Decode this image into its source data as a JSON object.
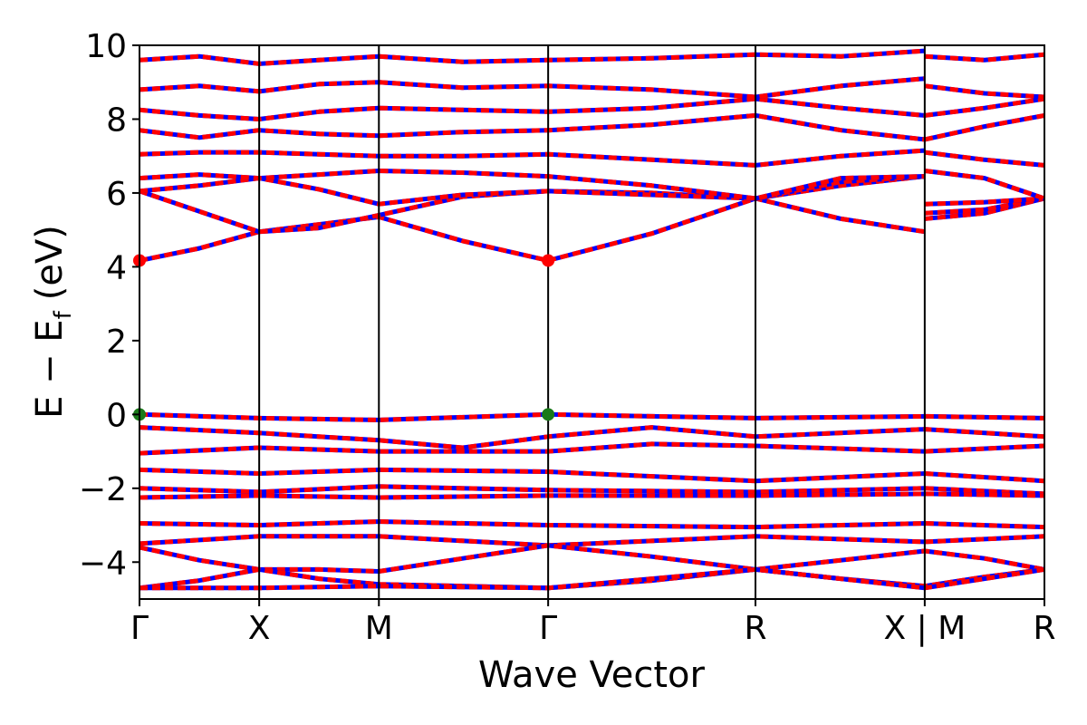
{
  "chart_data": {
    "type": "line",
    "title": "",
    "xlabel": "Wave Vector",
    "ylabel": {
      "main": "E − E",
      "subscript": "f",
      "unit": "(eV)"
    },
    "ylim": [
      -5,
      10
    ],
    "yticks": [
      -4,
      -2,
      0,
      2,
      4,
      6,
      8,
      10
    ],
    "ytick_labels": [
      "−4",
      "−2",
      "0",
      "2",
      "4",
      "6",
      "8",
      "10"
    ],
    "kpath_labels": [
      "Γ",
      "X",
      "M",
      "Γ",
      "R",
      "X | M",
      "R"
    ],
    "kpath_positions": [
      0,
      0.5,
      1.0,
      1.707,
      2.573,
      3.28,
      3.78
    ],
    "xlim": [
      0,
      3.78
    ],
    "grid": false,
    "legend": "none",
    "colors": {
      "up": "#ff0000",
      "down": "#0000ff",
      "cbm": "#ff0000",
      "vbm": "#1a7a1a",
      "kline": "#000000"
    },
    "markers": {
      "cbm": [
        {
          "x": 0,
          "y": 4.17
        },
        {
          "x": 1.707,
          "y": 4.17
        }
      ],
      "vbm": [
        {
          "x": 0,
          "y": 0.0
        },
        {
          "x": 1.707,
          "y": 0.0
        }
      ]
    },
    "bands": [
      {
        "name": "conduction_lowest",
        "x": [
          0,
          0.25,
          0.5,
          0.75,
          1.0,
          1.35,
          1.707,
          2.14,
          2.573,
          2.93,
          3.28,
          3.28,
          3.53,
          3.78
        ],
        "y": [
          4.17,
          4.5,
          4.95,
          5.15,
          5.35,
          4.7,
          4.17,
          4.9,
          5.85,
          5.3,
          4.95,
          5.3,
          5.45,
          5.85
        ]
      },
      {
        "name": "conduction_2",
        "x": [
          0,
          0.25,
          0.5,
          0.75,
          1.0,
          1.35,
          1.707,
          2.14,
          2.573,
          2.93,
          3.28,
          3.28,
          3.53,
          3.78
        ],
        "y": [
          6.05,
          5.5,
          4.95,
          5.05,
          5.4,
          5.9,
          6.05,
          6.0,
          5.85,
          6.2,
          6.45,
          5.45,
          5.55,
          5.85
        ]
      },
      {
        "name": "conduction_3",
        "x": [
          0,
          0.25,
          0.5,
          0.75,
          1.0,
          1.35,
          1.707,
          2.14,
          2.573,
          2.93,
          3.28,
          3.28,
          3.53,
          3.78
        ],
        "y": [
          6.05,
          6.2,
          6.4,
          6.1,
          5.7,
          5.95,
          6.05,
          5.95,
          5.85,
          6.3,
          6.45,
          5.7,
          5.75,
          5.85
        ]
      },
      {
        "name": "conduction_4",
        "x": [
          0,
          0.25,
          0.5,
          0.75,
          1.0,
          1.35,
          1.707,
          2.14,
          2.573,
          2.93,
          3.28,
          3.28,
          3.53,
          3.78
        ],
        "y": [
          6.4,
          6.5,
          6.4,
          6.5,
          6.6,
          6.55,
          6.45,
          6.2,
          5.85,
          6.4,
          6.45,
          6.6,
          6.4,
          5.85
        ]
      },
      {
        "name": "conduction_5",
        "x": [
          0,
          0.25,
          0.5,
          0.75,
          1.0,
          1.35,
          1.707,
          2.14,
          2.573,
          2.93,
          3.28,
          3.28,
          3.53,
          3.78
        ],
        "y": [
          7.05,
          7.1,
          7.1,
          7.05,
          7.0,
          7.0,
          7.05,
          6.9,
          6.75,
          7.0,
          7.15,
          7.1,
          6.9,
          6.75
        ]
      },
      {
        "name": "conduction_6",
        "x": [
          0,
          0.25,
          0.5,
          0.75,
          1.0,
          1.35,
          1.707,
          2.14,
          2.573,
          2.93,
          3.28,
          3.28,
          3.53,
          3.78
        ],
        "y": [
          7.7,
          7.5,
          7.7,
          7.6,
          7.55,
          7.65,
          7.7,
          7.85,
          8.1,
          7.7,
          7.45,
          7.45,
          7.8,
          8.1
        ]
      },
      {
        "name": "conduction_7",
        "x": [
          0,
          0.25,
          0.5,
          0.75,
          1.0,
          1.35,
          1.707,
          2.14,
          2.573,
          2.93,
          3.28,
          3.28,
          3.53,
          3.78
        ],
        "y": [
          8.25,
          8.1,
          8.0,
          8.2,
          8.3,
          8.25,
          8.2,
          8.3,
          8.55,
          8.3,
          8.1,
          8.1,
          8.3,
          8.55
        ]
      },
      {
        "name": "conduction_8",
        "x": [
          0,
          0.25,
          0.5,
          0.75,
          1.0,
          1.35,
          1.707,
          2.14,
          2.573,
          2.93,
          3.28,
          3.28,
          3.53,
          3.78
        ],
        "y": [
          8.8,
          8.9,
          8.75,
          8.95,
          9.0,
          8.85,
          8.9,
          8.8,
          8.6,
          8.9,
          9.1,
          8.9,
          8.7,
          8.6
        ]
      },
      {
        "name": "conduction_9",
        "x": [
          0,
          0.25,
          0.5,
          0.75,
          1.0,
          1.35,
          1.707,
          2.14,
          2.573,
          2.93,
          3.28,
          3.28,
          3.53,
          3.78
        ],
        "y": [
          9.6,
          9.7,
          9.5,
          9.6,
          9.7,
          9.55,
          9.6,
          9.65,
          9.75,
          9.7,
          9.85,
          9.7,
          9.6,
          9.75
        ]
      },
      {
        "name": "valence_top",
        "x": [
          0,
          0.5,
          1.0,
          1.707,
          2.573,
          3.28,
          3.78
        ],
        "y": [
          0.0,
          -0.1,
          -0.15,
          0.0,
          -0.1,
          -0.05,
          -0.1
        ]
      },
      {
        "name": "valence_2",
        "x": [
          0,
          0.5,
          1.0,
          1.35,
          1.707,
          2.14,
          2.573,
          3.28,
          3.78
        ],
        "y": [
          -0.35,
          -0.5,
          -0.7,
          -0.9,
          -0.6,
          -0.35,
          -0.6,
          -0.4,
          -0.6
        ]
      },
      {
        "name": "valence_3",
        "x": [
          0,
          0.5,
          1.0,
          1.707,
          2.14,
          2.573,
          3.28,
          3.78
        ],
        "y": [
          -1.05,
          -0.9,
          -1.0,
          -1.0,
          -0.8,
          -0.85,
          -1.0,
          -0.85
        ]
      },
      {
        "name": "valence_4",
        "x": [
          0,
          0.5,
          1.0,
          1.707,
          2.573,
          3.28,
          3.78
        ],
        "y": [
          -1.5,
          -1.6,
          -1.5,
          -1.55,
          -1.8,
          -1.6,
          -1.8
        ]
      },
      {
        "name": "valence_5",
        "x": [
          0,
          0.5,
          1.0,
          1.707,
          2.573,
          3.28,
          3.78
        ],
        "y": [
          -2.0,
          -2.1,
          -1.95,
          -2.05,
          -2.1,
          -2.0,
          -2.15
        ]
      },
      {
        "name": "valence_6",
        "x": [
          0,
          0.5,
          1.0,
          1.707,
          2.573,
          3.28,
          3.78
        ],
        "y": [
          -2.25,
          -2.2,
          -2.25,
          -2.2,
          -2.2,
          -2.15,
          -2.2
        ]
      },
      {
        "name": "valence_7",
        "x": [
          0,
          0.5,
          1.0,
          1.707,
          2.573,
          3.28,
          3.78
        ],
        "y": [
          -2.95,
          -3.0,
          -2.9,
          -3.0,
          -3.05,
          -2.95,
          -3.05
        ]
      },
      {
        "name": "valence_8",
        "x": [
          0,
          0.5,
          1.0,
          1.707,
          2.573,
          3.28,
          3.78
        ],
        "y": [
          -3.5,
          -3.3,
          -3.3,
          -3.55,
          -3.3,
          -3.45,
          -3.3
        ]
      },
      {
        "name": "valence_9",
        "x": [
          0,
          0.25,
          0.5,
          0.75,
          1.0,
          1.35,
          1.707,
          2.14,
          2.573,
          2.93,
          3.28,
          3.53,
          3.78
        ],
        "y": [
          -3.6,
          -3.95,
          -4.2,
          -4.2,
          -4.25,
          -3.9,
          -3.55,
          -3.85,
          -4.2,
          -4.45,
          -4.65,
          -4.4,
          -4.2
        ]
      },
      {
        "name": "valence_10",
        "x": [
          0,
          0.25,
          0.5,
          0.75,
          1.0,
          1.35,
          1.707,
          2.14,
          2.573,
          2.93,
          3.28,
          3.53,
          3.78
        ],
        "y": [
          -4.7,
          -4.5,
          -4.2,
          -4.45,
          -4.6,
          -4.65,
          -4.7,
          -4.5,
          -4.2,
          -3.95,
          -3.7,
          -3.9,
          -4.2
        ]
      },
      {
        "name": "valence_11",
        "x": [
          0,
          0.5,
          1.0,
          1.707,
          2.573,
          3.28,
          3.78
        ],
        "y": [
          -4.7,
          -4.7,
          -4.65,
          -4.7,
          -4.2,
          -4.7,
          -4.2
        ]
      }
    ]
  }
}
